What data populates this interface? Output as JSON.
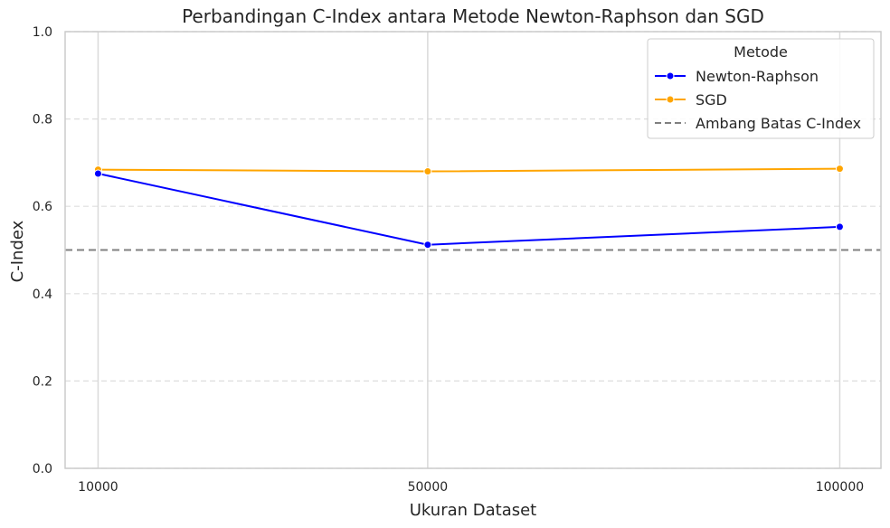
{
  "chart_data": {
    "type": "line",
    "title": "Perbandingan C-Index antara Metode Newton-Raphson dan SGD",
    "xlabel": "Ukuran Dataset",
    "ylabel": "C-Index",
    "categories": [
      "10000",
      "50000",
      "100000"
    ],
    "x": [
      10000,
      50000,
      100000
    ],
    "xlim": [
      6000,
      105000
    ],
    "ylim": [
      0,
      1
    ],
    "yticks": [
      "0.0",
      "0.2",
      "0.4",
      "0.6",
      "0.8",
      "1.0"
    ],
    "series": [
      {
        "name": "Newton-Raphson",
        "color": "#0000ff",
        "marker": "circle",
        "values": [
          0.675,
          0.512,
          0.553
        ]
      },
      {
        "name": "SGD",
        "color": "#ffa500",
        "marker": "circle",
        "values": [
          0.684,
          0.68,
          0.686
        ]
      }
    ],
    "reference_lines": [
      {
        "name": "Ambang Batas C-Index",
        "y": 0.5,
        "color": "#808080",
        "style": "dashed"
      }
    ],
    "legend": {
      "title": "Metode",
      "placement": "top-right"
    },
    "grid": {
      "y": "dashed",
      "x": "solid"
    }
  }
}
